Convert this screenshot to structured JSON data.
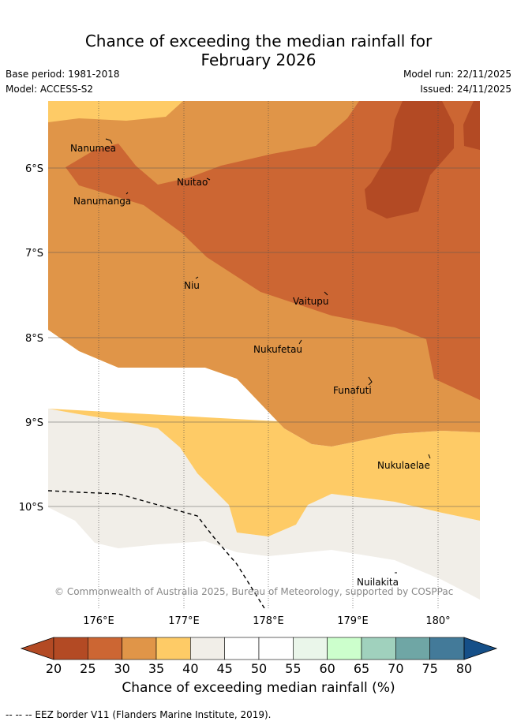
{
  "title_line1": "Chance of exceeding the median rainfall for",
  "title_line2": "February 2026",
  "base_period": "Base period: 1981-2018",
  "model": "Model: ACCESS-S2",
  "model_run": "Model run: 22/11/2025",
  "issued": "Issued: 24/11/2025",
  "lat_labels": [
    "6°S",
    "7°S",
    "8°S",
    "9°S",
    "10°S"
  ],
  "lon_labels": [
    "176°E",
    "177°E",
    "178°E",
    "179°E",
    "180°"
  ],
  "places": [
    "Nanumea",
    "Nuitao",
    "Nanumanga",
    "Niu",
    "Vaitupu",
    "Nukufetau",
    "Funafuti",
    "Nukulaelae",
    "Nuilakita"
  ],
  "copyright": "© Commonwealth of Australia 2025, Bureau of Meteorology, supported by COSPPac",
  "colorbar": {
    "ticks": [
      "20",
      "25",
      "30",
      "35",
      "40",
      "45",
      "50",
      "55",
      "60",
      "65",
      "70",
      "75",
      "80"
    ],
    "colors": [
      "#b34a24",
      "#cc6633",
      "#e09548",
      "#fecb66",
      "#f1eee8",
      "#ffffff",
      "#ffffff",
      "#eaf6ea",
      "#ccffcc",
      "#a0d1bd",
      "#6fa6a5",
      "#437a99",
      "#154f88"
    ],
    "label": "Chance of exceeding median rainfall (%)"
  },
  "eez_legend": "-- -- -- EEZ border V11 (Flanders Marine Institute, 2019)."
}
